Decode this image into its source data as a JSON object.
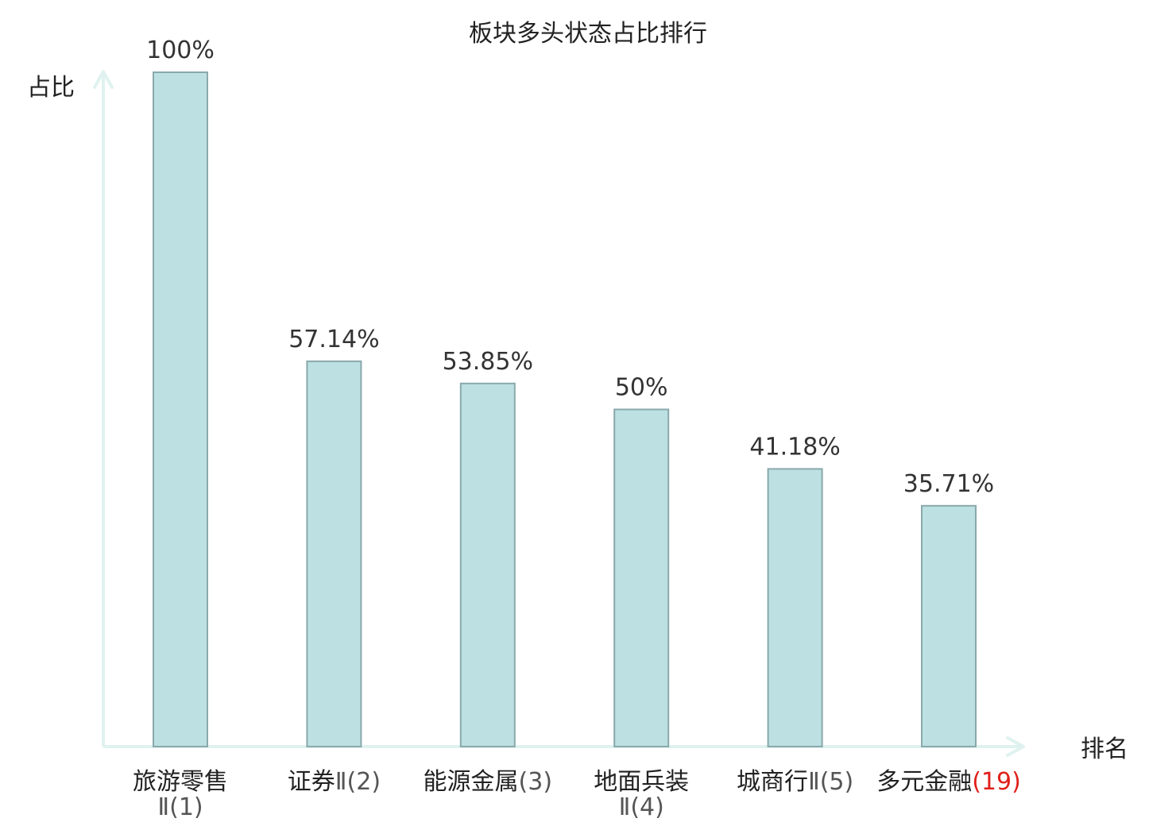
{
  "chart_data": {
    "type": "bar",
    "title": "板块多头状态占比排行",
    "xlabel": "排名",
    "ylabel": "占比",
    "ylim": [
      0,
      100
    ],
    "grid": false,
    "legend": "none",
    "categories": [
      {
        "name": "旅游零售Ⅱ",
        "rank": "(1)",
        "highlight": false
      },
      {
        "name": "证券Ⅱ",
        "rank": "(2)",
        "highlight": false
      },
      {
        "name": "能源金属",
        "rank": "(3)",
        "highlight": false
      },
      {
        "name": "地面兵装Ⅱ",
        "rank": "(4)",
        "highlight": false
      },
      {
        "name": "城商行Ⅱ",
        "rank": "(5)",
        "highlight": false
      },
      {
        "name": "多元金融",
        "rank": "(19)",
        "highlight": true
      }
    ],
    "values": [
      100,
      57.14,
      53.85,
      50,
      41.18,
      35.71
    ],
    "value_labels": [
      "100%",
      "57.14%",
      "53.85%",
      "50%",
      "41.18%",
      "35.71%"
    ]
  },
  "colors": {
    "bar_fill": "#bde0e2",
    "bar_stroke": "#8aa9ac",
    "axis": "#dff2ef",
    "text": "#222222",
    "value_text": "#333333",
    "highlight": "#e0201b"
  }
}
